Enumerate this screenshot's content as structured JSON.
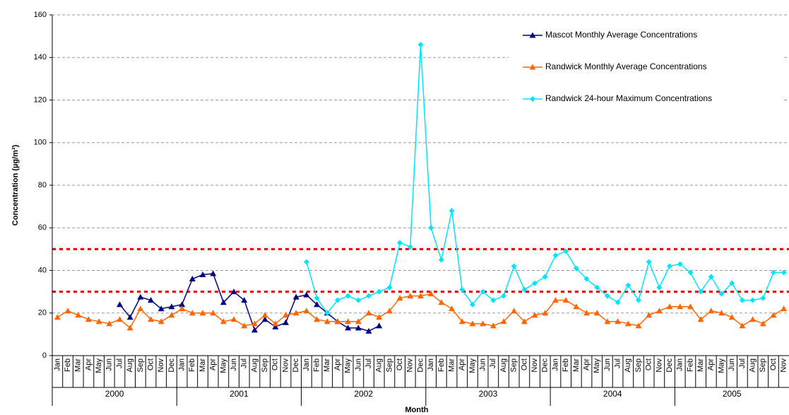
{
  "chart_data": {
    "type": "line",
    "xlabel": "Month",
    "ylabel": "Concentration (µg/m³)",
    "categories": [
      "Jan",
      "Feb",
      "Mar",
      "Apr",
      "May",
      "Jun",
      "Jul",
      "Aug",
      "Sep",
      "Oct",
      "Nov",
      "Dec",
      "Jan",
      "Feb",
      "Mar",
      "Apr",
      "May",
      "Jun",
      "Jul",
      "Aug",
      "Sep",
      "Oct",
      "Nov",
      "Dec",
      "Jan",
      "Feb",
      "Mar",
      "Apr",
      "May",
      "Jun",
      "Jul",
      "Aug",
      "Sep",
      "Oct",
      "Nov",
      "Dec",
      "Jan",
      "Feb",
      "Mar",
      "Apr",
      "May",
      "Jun",
      "Jul",
      "Aug",
      "Sep",
      "Oct",
      "Nov",
      "Dec",
      "Jan",
      "Feb",
      "Mar",
      "Apr",
      "May",
      "Jun",
      "Jul",
      "Aug",
      "Sep",
      "Oct",
      "Nov",
      "Dec",
      "Jan",
      "Feb",
      "Mar",
      "Apr",
      "May",
      "Jun",
      "Jul",
      "Aug",
      "Sep",
      "Oct",
      "Nov"
    ],
    "year_labels": [
      "2000",
      "2001",
      "2002",
      "2003",
      "2004",
      "2005"
    ],
    "series": [
      {
        "name": "Mascot Monthly Average Concentrations",
        "color": "#000080",
        "marker": "triangle",
        "values": [
          null,
          null,
          null,
          null,
          null,
          null,
          24,
          18,
          27.5,
          26,
          22,
          23,
          24,
          36,
          38,
          38.5,
          25,
          30,
          26,
          12,
          17,
          13.5,
          15.5,
          27.5,
          28.5,
          24,
          20,
          16,
          13,
          13,
          11.5,
          14,
          null,
          null,
          null,
          null,
          null,
          null,
          null,
          null,
          null,
          null,
          null,
          null,
          null,
          null,
          null,
          null,
          null,
          null,
          null,
          null,
          null,
          null,
          null,
          null,
          null,
          null,
          null,
          null,
          null,
          null,
          null,
          null,
          null,
          null,
          null,
          null,
          null,
          null,
          null
        ]
      },
      {
        "name": "Randwick Monthly Average Concentrations",
        "color": "#ff6600",
        "marker": "triangle",
        "values": [
          18,
          21,
          19,
          17,
          16,
          15,
          17,
          13,
          22,
          17,
          16,
          19,
          22,
          20,
          20,
          20,
          16,
          17,
          14,
          15,
          19,
          15,
          19,
          20,
          21,
          17,
          16,
          16,
          16,
          16,
          20,
          18,
          21,
          27,
          28,
          28,
          29,
          25,
          22,
          16,
          15,
          15,
          14,
          16,
          21,
          16,
          19,
          20,
          26,
          26,
          23,
          20,
          20,
          16,
          16,
          15,
          14,
          19,
          21,
          23,
          23,
          23,
          17,
          21,
          20,
          18,
          14,
          17,
          15,
          19,
          22
        ]
      },
      {
        "name": "Randwick 24-hour Maximum Concentrations",
        "color": "#00e5ff",
        "marker": "diamond",
        "values": [
          null,
          null,
          null,
          null,
          null,
          null,
          null,
          null,
          null,
          null,
          null,
          null,
          null,
          null,
          null,
          null,
          null,
          null,
          null,
          null,
          null,
          null,
          null,
          null,
          44,
          27,
          20,
          26,
          28,
          26,
          28,
          30,
          32,
          53,
          51,
          146,
          60,
          45,
          68,
          31,
          24,
          30,
          26,
          28,
          42,
          31,
          34,
          37,
          47,
          49,
          41,
          36,
          32,
          28,
          25,
          33,
          26,
          44,
          32,
          42,
          43,
          39,
          30,
          37,
          29,
          34,
          26,
          26,
          27,
          39,
          39
        ]
      }
    ],
    "reference_lines": [
      {
        "value": 50,
        "color": "#e00000"
      },
      {
        "value": 30,
        "color": "#e00000"
      }
    ],
    "ylim": [
      0,
      160
    ],
    "yticks": [
      0,
      20,
      40,
      60,
      80,
      100,
      120,
      140,
      160
    ],
    "grid": true,
    "legend": "upper right"
  }
}
